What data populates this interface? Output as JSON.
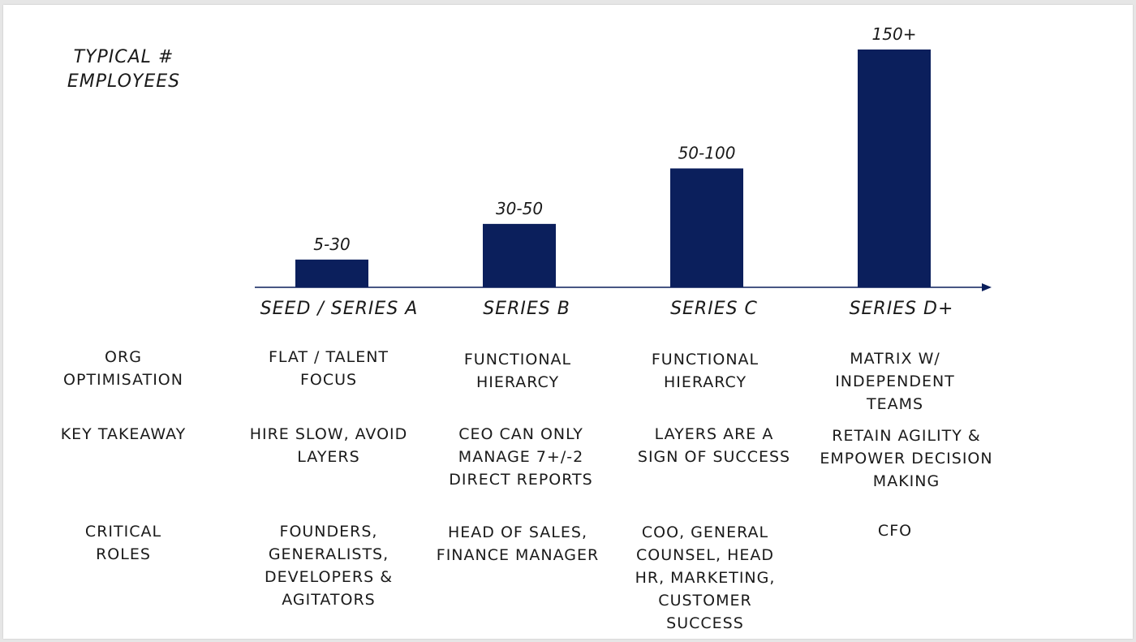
{
  "chart_data": {
    "type": "bar",
    "ylabel": "TYPICAL #\nEMPLOYEES",
    "xlabel": "",
    "categories": [
      "SEED / SERIES A",
      "SERIES B",
      "SERIES C",
      "SERIES D+"
    ],
    "data_labels": [
      "5-30",
      "30-50",
      "50-100",
      "150+"
    ],
    "values": [
      17.5,
      40,
      75,
      150
    ],
    "ylim": [
      0,
      160
    ],
    "grid": false,
    "bar_color": "#0b1f5c",
    "axis_color": "#0b1f5c"
  },
  "table": {
    "rows": [
      {
        "label": "ORG\nOPTIMISATION",
        "cells": [
          "FLAT / TALENT\nFOCUS",
          "FUNCTIONAL\nHIERARCY",
          "FUNCTIONAL\nHIERARCY",
          "MATRIX W/ INDEPENDENT\nTEAMS"
        ]
      },
      {
        "label": "KEY TAKEAWAY",
        "cells": [
          "HIRE SLOW, AVOID\nLAYERS",
          "CEO CAN ONLY\nMANAGE 7+/-2\nDIRECT REPORTS",
          "LAYERS ARE A\nSIGN OF SUCCESS",
          "RETAIN AGILITY &\nEMPOWER DECISION\nMAKING"
        ]
      },
      {
        "label": "CRITICAL\nROLES",
        "cells": [
          "FOUNDERS,\nGENERALISTS,\nDEVELOPERS &\nAGITATORS",
          "HEAD OF SALES,\nFINANCE MANAGER",
          "COO, GENERAL\nCOUNSEL, HEAD\nHR, MARKETING,\nCUSTOMER\nSUCCESS",
          "CFO"
        ]
      }
    ]
  }
}
